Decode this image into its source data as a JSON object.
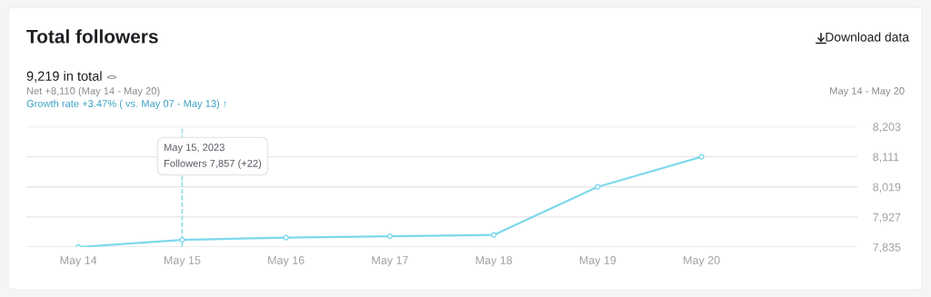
{
  "chart_data": {
    "type": "line",
    "title": "Total followers",
    "subtitle": "9,219 in total",
    "annotations": [
      "Net +8,110 (May 14 - May 20)",
      "Growth rate +3.47% ( vs. May 07 - May 13) ↑",
      "Download data",
      "May 14 - May 20",
      "May 15, 2023\nFollowers 7,857 (+22)"
    ],
    "categories": [
      "May 14",
      "May 15",
      "May 16",
      "May 17",
      "May 18",
      "May 19",
      "May 20",
      null
    ],
    "series": [
      {
        "color": "#7dd8ec",
        "values": [
          7835,
          7857,
          7864,
          7868,
          7872,
          8019,
          8111,
          null
        ]
      }
    ],
    "ylim": [
      7835,
      8203
    ],
    "yticks": [
      {
        "value": 7835,
        "label": "7,835"
      },
      {
        "value": 7927,
        "label": "7,927"
      },
      {
        "value": 8019,
        "label": "8,019"
      },
      {
        "value": 8111,
        "label": "8,111"
      },
      {
        "value": 8203,
        "label": "8,203"
      }
    ],
    "ref_lines": [
      {
        "axis": "x",
        "value": "May 15",
        "color": "#7dd8ec",
        "line_style": "dashed"
      }
    ],
    "grid": "y",
    "marker": "circle",
    "line_style": "solid",
    "legend": false
  }
}
